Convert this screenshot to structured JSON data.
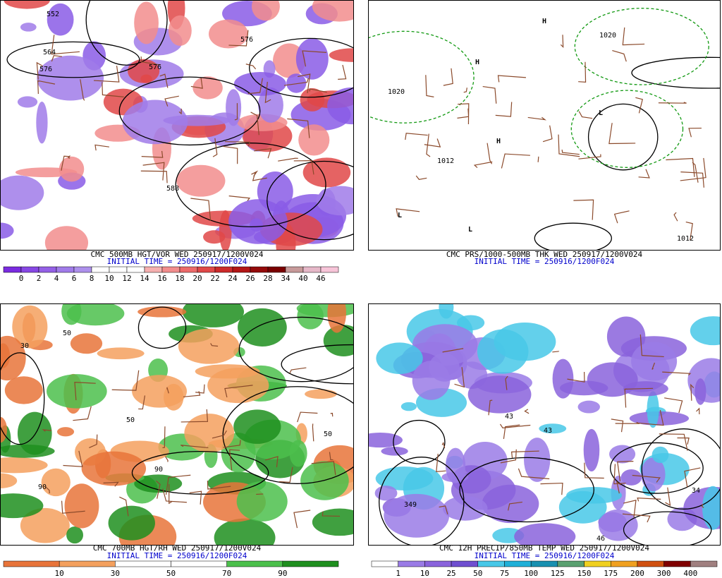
{
  "panels": [
    {
      "title": "CMC 500MB HGT/VOR WED 250917/1200V024",
      "subtitle": "INITIAL TIME = 250916/1200F024",
      "map_labels": [
        "576",
        "576",
        "588",
        "564",
        "552",
        "576"
      ],
      "colorbar": {
        "labels": [
          "0",
          "2",
          "4",
          "6",
          "8",
          "10",
          "12",
          "14",
          "16",
          "18",
          "20",
          "22",
          "24",
          "26",
          "28",
          "34",
          "40",
          "46"
        ],
        "colors": [
          "#7a2be0",
          "#8747e4",
          "#9460e6",
          "#a07be9",
          "#ad90ec",
          "#ffffff",
          "#ffffff",
          "#ffffff",
          "#f6b0b0",
          "#f28d8d",
          "#ec6a6a",
          "#e04848",
          "#cc2a2a",
          "#b31616",
          "#940a0a",
          "#7a0000",
          "#c79a9a",
          "#e6b8c8",
          "#f7c4d8"
        ]
      }
    },
    {
      "title": "CMC PRS/1000-500MB THK WED 250917/1200V024",
      "subtitle": "INITIAL TIME = 250916/1200F024",
      "map_labels": [
        "H",
        "H",
        "H",
        "L",
        "L",
        "L",
        "1020",
        "1012",
        "1012",
        "1020"
      ]
    },
    {
      "title": "CMC 700MB HGT/RH WED 250917/1200V024",
      "subtitle": "INITIAL TIME = 250916/1200F024",
      "map_labels": [
        "50",
        "90",
        "30",
        "50",
        "90",
        "50"
      ],
      "colorbar": {
        "labels": [
          "10",
          "30",
          "50",
          "70",
          "90"
        ],
        "colors": [
          "#e8743a",
          "#f4a05e",
          "#ffffff",
          "#ffffff",
          "#4cc04c",
          "#1f8f1f"
        ]
      }
    },
    {
      "title": "CMC 12H PRECIP/850MB TEMP WED 250917/1200V024",
      "subtitle": "INITIAL TIME = 250916/1200F024",
      "map_labels": [
        "43",
        "349",
        "46",
        "43",
        "34"
      ],
      "colorbar": {
        "labels": [
          "1",
          "10",
          "25",
          "50",
          "75",
          "100",
          "125",
          "150",
          "175",
          "200",
          "300",
          "400"
        ],
        "colors": [
          "#ffffff",
          "#9a7be6",
          "#8a63dc",
          "#6f4fd0",
          "#48c8e8",
          "#20b0d8",
          "#1890b0",
          "#5aa070",
          "#f0d020",
          "#f0a020",
          "#d05010",
          "#800000",
          "#a08080"
        ]
      }
    }
  ]
}
